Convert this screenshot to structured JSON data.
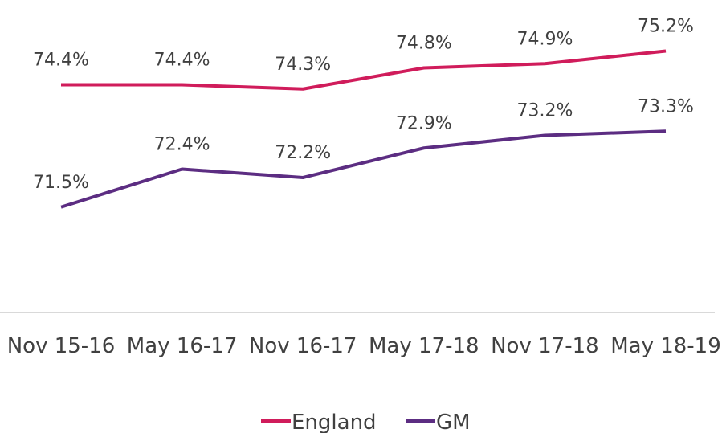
{
  "chart_data": {
    "type": "line",
    "categories": [
      "Nov 15-16",
      "May 16-17",
      "Nov 16-17",
      "May 17-18",
      "Nov 17-18",
      "May 18-19"
    ],
    "series": [
      {
        "name": "England",
        "color": "#d01c5b",
        "values": [
          74.4,
          74.4,
          74.3,
          74.8,
          74.9,
          75.2
        ],
        "value_labels": [
          "74.4%",
          "74.4%",
          "74.3%",
          "74.8%",
          "74.9%",
          "75.2%"
        ]
      },
      {
        "name": "GM",
        "color": "#5c2d82",
        "values": [
          71.5,
          72.4,
          72.2,
          72.9,
          73.2,
          73.3
        ],
        "value_labels": [
          "71.5%",
          "72.4%",
          "72.2%",
          "72.9%",
          "73.2%",
          "73.3%"
        ]
      }
    ],
    "ylim": [
      69,
      76
    ],
    "legend": "bottom"
  }
}
